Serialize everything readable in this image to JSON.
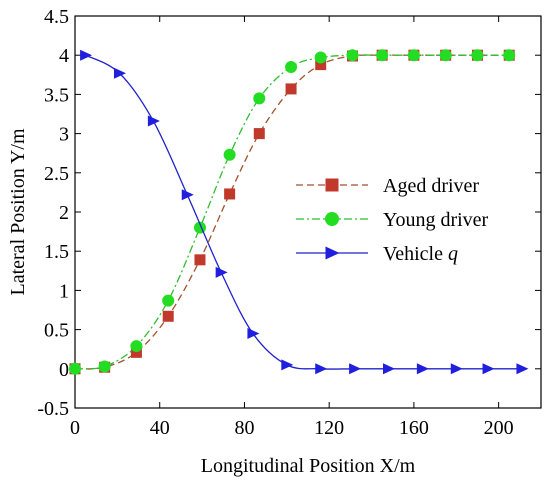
{
  "chart_data": {
    "type": "line",
    "xlabel": "Longitudinal Position X/m",
    "ylabel": "Lateral Position Y/m",
    "xlim": [
      0,
      220
    ],
    "ylim": [
      -0.5,
      4.5
    ],
    "xticks": [
      0,
      40,
      80,
      120,
      160,
      200
    ],
    "yticks": [
      -0.5,
      0,
      0.5,
      1,
      1.5,
      2,
      2.5,
      3,
      3.5,
      4,
      4.5
    ],
    "grid": false,
    "legend_position": "center-right",
    "series": [
      {
        "name": "Aged driver",
        "color": "#c0392b",
        "line_color": "#a0522d",
        "dash": "dashed",
        "marker": "square",
        "x": [
          0,
          14,
          29,
          44,
          59,
          73,
          87,
          102,
          116,
          131,
          145,
          160,
          175,
          190,
          205
        ],
        "y": [
          0,
          0.02,
          0.21,
          0.67,
          1.39,
          2.23,
          3.0,
          3.57,
          3.88,
          3.99,
          4.0,
          4.0,
          4.0,
          4.0,
          4.0
        ]
      },
      {
        "name": "Young driver",
        "color": "#22dd22",
        "line_color": "#33bb33",
        "dash": "dashdot",
        "marker": "circle",
        "x": [
          0,
          14,
          29,
          44,
          59,
          73,
          87,
          102,
          116,
          131,
          145,
          160,
          175,
          190,
          205
        ],
        "y": [
          0,
          0.03,
          0.29,
          0.87,
          1.8,
          2.73,
          3.45,
          3.85,
          3.97,
          4.0,
          4.0,
          4.0,
          4.0,
          4.0,
          4.0
        ]
      },
      {
        "name": "Vehicle q",
        "name_main": "Vehicle ",
        "name_italic": "q",
        "color": "#1f1fdd",
        "line_color": "#2222cc",
        "dash": "solid",
        "marker": "triangle-right",
        "x": [
          5,
          21,
          37,
          53,
          69,
          84,
          100,
          116,
          132,
          148,
          164,
          180,
          195,
          211
        ],
        "y": [
          4.0,
          3.77,
          3.16,
          2.22,
          1.23,
          0.45,
          0.05,
          0.0,
          0.0,
          0.0,
          0.0,
          0.0,
          0.0,
          0.0
        ]
      }
    ]
  }
}
